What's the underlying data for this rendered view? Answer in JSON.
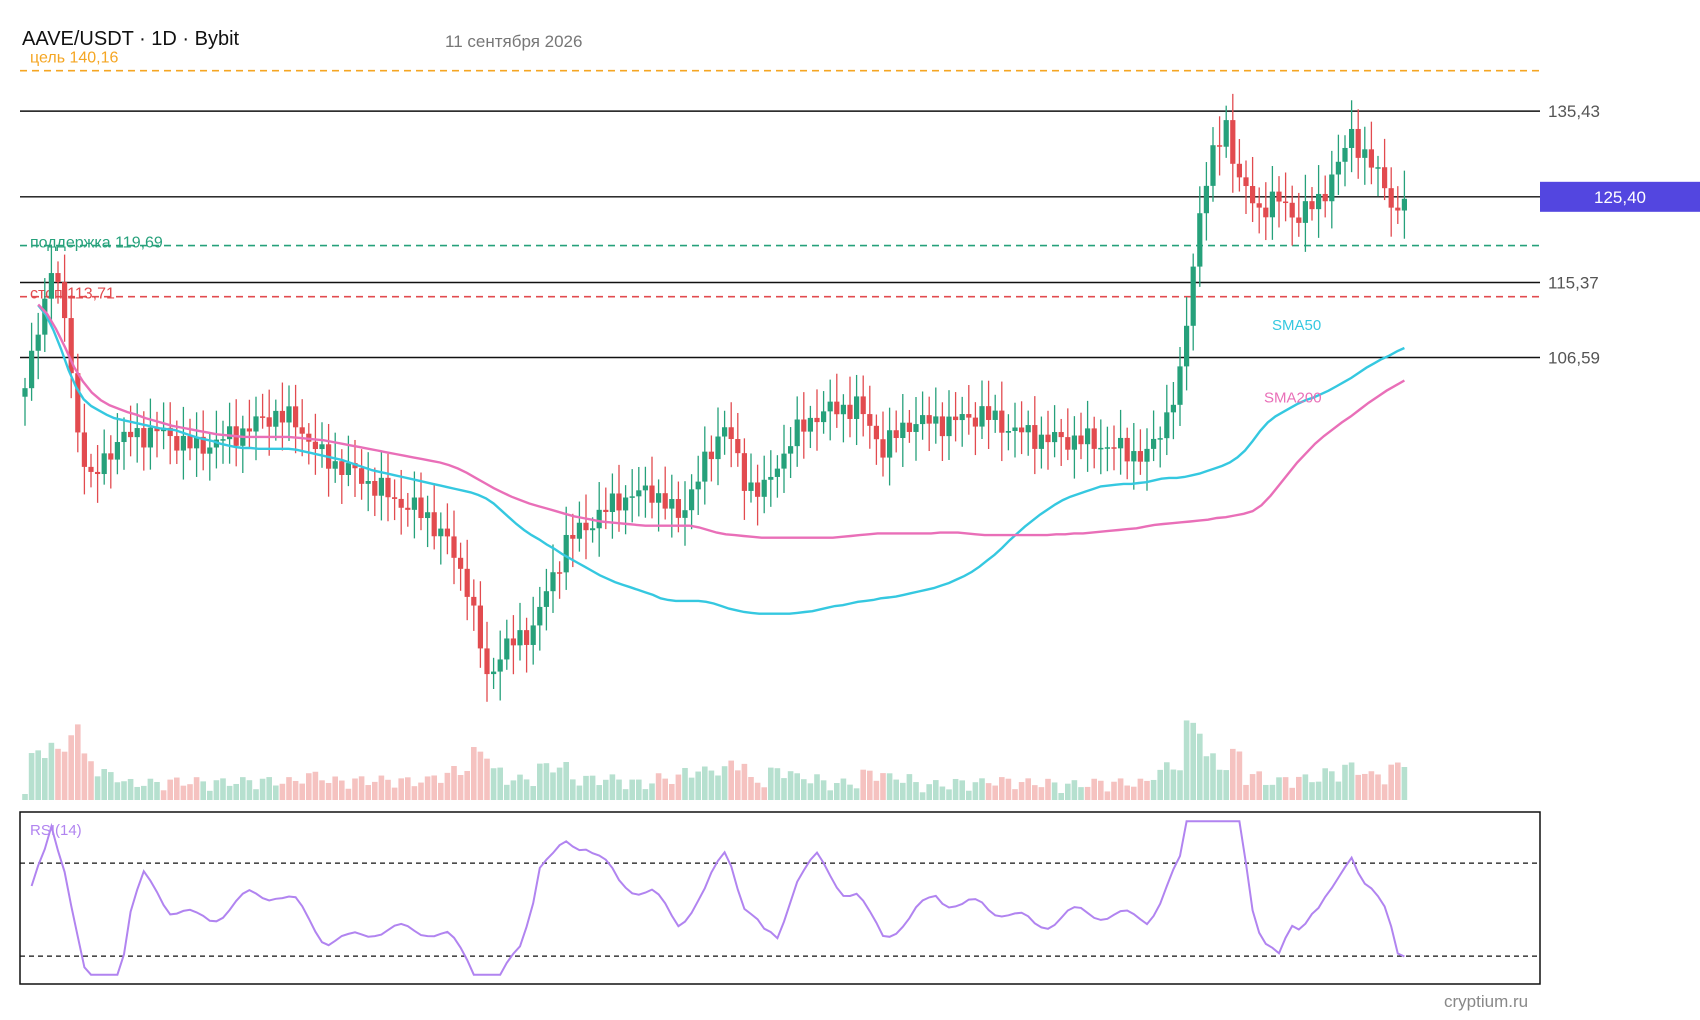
{
  "header": {
    "symbol": "AAVE/USDT · 1D · Bybit",
    "date": "11 сентября 2026"
  },
  "watermark": "cryptium.ru",
  "colors": {
    "up": "#26a17b",
    "down": "#e24b4f",
    "vol_up": "#b6e0cf",
    "vol_down": "#f5c2c0",
    "sma50": "#35c8e0",
    "sma200": "#e96fb8",
    "rsi": "#b184f0",
    "target": "#f5a623",
    "support": "#26a17b",
    "stop": "#e24b4f",
    "level": "#111111",
    "price_tag": "#5346e0"
  },
  "chart_data": {
    "type": "candlestick",
    "title": "AAVE/USDT · 1D · Bybit",
    "price_range": [
      66.5,
      142.0
    ],
    "price_tag": {
      "value": 125.4,
      "label": "125,40"
    },
    "horizontal_levels": [
      {
        "value": 135.43,
        "label": "135,43"
      },
      {
        "value": 125.4,
        "label": ""
      },
      {
        "value": 115.37,
        "label": "115,37"
      },
      {
        "value": 106.59,
        "label": "106,59"
      }
    ],
    "dashed_levels": [
      {
        "name": "target",
        "value": 140.16,
        "label": "цель 140,16",
        "color": "#f5a623"
      },
      {
        "name": "support",
        "value": 119.69,
        "label": "поддержка 119,69",
        "color": "#26a17b"
      },
      {
        "name": "stop",
        "value": 113.71,
        "label": "стоп 113,71",
        "color": "#e24b4f"
      }
    ],
    "ma_labels": {
      "sma50": "SMA50",
      "sma200": "SMA200"
    },
    "sma50": [
      112.7,
      111.6,
      109.8,
      107.6,
      105.1,
      103.1,
      101.7,
      100.9,
      100.4,
      99.9,
      99.5,
      99.3,
      99.1,
      98.9,
      98.7,
      98.5,
      98.3,
      98.2,
      98.1,
      97.8,
      97.5,
      97.2,
      97.0,
      96.8,
      96.5,
      96.3,
      96.1,
      96.0,
      96.0,
      95.9,
      95.9,
      95.9,
      95.9,
      95.9,
      95.8,
      95.6,
      95.4,
      95.2,
      95.0,
      94.8,
      94.6,
      94.3,
      94.0,
      93.7,
      93.4,
      93.2,
      93.0,
      92.8,
      92.6,
      92.4,
      92.2,
      92.0,
      91.8,
      91.6,
      91.4,
      91.2,
      91.0,
      90.8,
      90.5,
      90.1,
      89.5,
      88.7,
      87.9,
      87.1,
      86.4,
      85.8,
      85.3,
      84.7,
      84.2,
      83.6,
      83.1,
      82.6,
      82.1,
      81.6,
      81.1,
      80.7,
      80.3,
      80.0,
      79.7,
      79.4,
      79.1,
      78.8,
      78.4,
      78.2,
      78.1,
      78.1,
      78.1,
      78.1,
      78.0,
      77.8,
      77.5,
      77.2,
      77.0,
      76.8,
      76.7,
      76.6,
      76.6,
      76.6,
      76.6,
      76.6,
      76.7,
      76.8,
      76.9,
      77.1,
      77.3,
      77.5,
      77.6,
      77.8,
      78.0,
      78.1,
      78.2,
      78.4,
      78.5,
      78.6,
      78.8,
      79.0,
      79.2,
      79.4,
      79.6,
      79.9,
      80.2,
      80.6,
      81.0,
      81.5,
      82.1,
      82.8,
      83.5,
      84.3,
      85.2,
      86.0,
      86.8,
      87.5,
      88.2,
      88.8,
      89.4,
      89.9,
      90.3,
      90.6,
      90.9,
      91.2,
      91.5,
      91.6,
      91.7,
      91.8,
      91.8,
      91.9,
      92.0,
      92.2,
      92.4,
      92.5,
      92.5,
      92.6,
      92.8,
      93.0,
      93.3,
      93.6,
      93.9,
      94.3,
      94.9,
      95.7,
      96.8,
      98.0,
      99.0,
      99.7,
      100.2,
      100.7,
      101.2,
      101.6,
      101.9,
      102.3,
      102.7,
      103.2,
      103.7,
      104.2,
      104.8,
      105.4,
      105.9,
      106.4,
      106.8,
      107.3,
      107.7
    ],
    "sma200": [
      112.8,
      111.7,
      109.9,
      107.8,
      105.5,
      103.8,
      102.5,
      101.6,
      101.0,
      100.6,
      100.2,
      99.9,
      99.5,
      99.2,
      98.9,
      98.6,
      98.4,
      98.2,
      98.0,
      97.8,
      97.6,
      97.5,
      97.4,
      97.3,
      97.3,
      97.3,
      97.3,
      97.3,
      97.3,
      97.2,
      97.1,
      97.0,
      96.9,
      96.7,
      96.5,
      96.3,
      96.1,
      95.9,
      95.7,
      95.5,
      95.3,
      95.1,
      94.9,
      94.7,
      94.5,
      94.3,
      94.0,
      93.6,
      93.1,
      92.5,
      91.9,
      91.3,
      90.8,
      90.3,
      89.9,
      89.5,
      89.2,
      88.9,
      88.6,
      88.3,
      88.0,
      87.8,
      87.6,
      87.4,
      87.3,
      87.2,
      87.1,
      87.0,
      86.9,
      86.9,
      86.9,
      86.9,
      86.9,
      86.9,
      86.7,
      86.4,
      86.1,
      85.9,
      85.8,
      85.7,
      85.6,
      85.5,
      85.5,
      85.5,
      85.5,
      85.5,
      85.5,
      85.5,
      85.5,
      85.5,
      85.6,
      85.7,
      85.8,
      85.9,
      86.0,
      86.0,
      86.0,
      86.0,
      86.0,
      86.0,
      86.0,
      86.1,
      86.1,
      86.1,
      86.0,
      85.9,
      85.8,
      85.8,
      85.8,
      85.8,
      85.8,
      85.8,
      85.8,
      85.8,
      85.9,
      85.9,
      86.0,
      86.0,
      86.1,
      86.2,
      86.3,
      86.4,
      86.5,
      86.6,
      86.8,
      87.0,
      87.1,
      87.2,
      87.3,
      87.4,
      87.5,
      87.6,
      87.8,
      87.9,
      88.1,
      88.3,
      88.6,
      89.3,
      90.4,
      91.7,
      93.0,
      94.3,
      95.4,
      96.5,
      97.4,
      98.2,
      99.0,
      99.7,
      100.5,
      101.3,
      102.0,
      102.7,
      103.3,
      103.9
    ]
  },
  "rsi": {
    "label": "RSI(14)",
    "upper": 70,
    "lower": 30,
    "range": [
      18,
      92
    ]
  },
  "volume_label": "Volume"
}
